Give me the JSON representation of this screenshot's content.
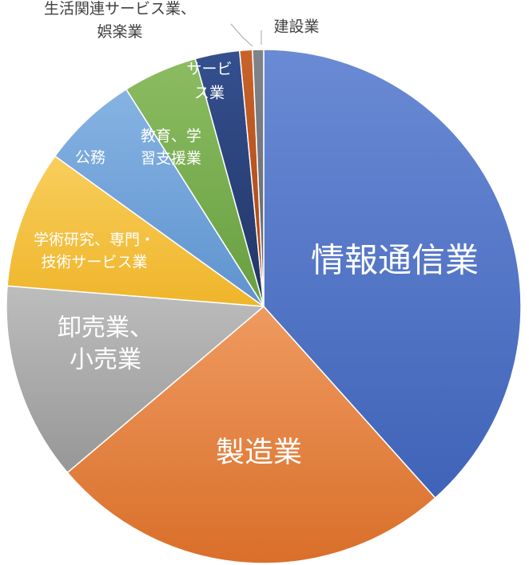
{
  "chart_data": {
    "type": "pie",
    "unit": "%",
    "categories": [
      "情報通信業",
      "製造業",
      "卸売業、小売業",
      "学術研究、専門・技術サービス業",
      "公務",
      "教育、学習支援業",
      "サービス業",
      "生活関連サービス業、娯楽業",
      "建設業"
    ],
    "label_lines": [
      [
        "情報通信業"
      ],
      [
        "製造業"
      ],
      [
        "卸売業、",
        "小売業"
      ],
      [
        "学術研究、専門・",
        "技術サービス業"
      ],
      [
        "公務"
      ],
      [
        "教育、学",
        "習支援業"
      ],
      [
        "サービ",
        "ス業"
      ],
      [
        "生活関連サービス業、",
        "娯楽業"
      ],
      [
        "建設業"
      ]
    ],
    "values": [
      38.5,
      25.5,
      12.5,
      8.7,
      6.1,
      4.7,
      2.8,
      0.8,
      0.7
    ],
    "colors": [
      "#4a6fc4",
      "#e47c36",
      "#a9a9a9",
      "#f5bf3a",
      "#6b9fd8",
      "#76ad4d",
      "#2a3f78",
      "#b8521b",
      "#6f737a"
    ],
    "title": "",
    "legend": "none",
    "start_angle_deg": 0,
    "direction": "clockwise"
  }
}
